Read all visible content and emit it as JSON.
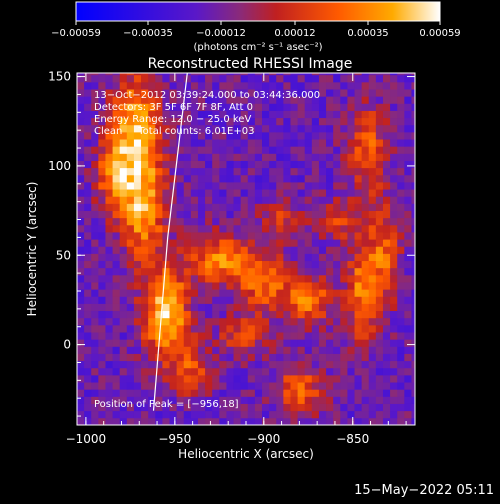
{
  "chart_data": {
    "type": "heatmap",
    "title": "Reconstructed RHESSI Image",
    "xlabel": "Heliocentric X (arcsec)",
    "ylabel": "Heliocentric Y (arcsec)",
    "xlim": [
      -1005,
      -815
    ],
    "ylim": [
      -45,
      152
    ],
    "x_ticks": [
      -1000,
      -950,
      -900,
      -850
    ],
    "x_tick_labels": [
      "−1000",
      "−950",
      "−900",
      "−850"
    ],
    "y_ticks": [
      0,
      50,
      100,
      150
    ],
    "y_tick_labels": [
      "0",
      "50",
      "100",
      "150"
    ],
    "colorbar": {
      "range": [
        -0.00059,
        0.00059
      ],
      "tick_labels": [
        "−0.00059",
        "−0.00035",
        "−0.00012",
        "0.00012",
        "0.00035",
        "0.00059"
      ],
      "units_label": "(photons cm⁻² s⁻¹ asec⁻²)",
      "colors": [
        "#0000ff",
        "#5a18c8",
        "#8a2a7a",
        "#c02020",
        "#ff5a00",
        "#ffaa00",
        "#ffffff"
      ]
    },
    "annotations": {
      "time_range": "13−Oct−2012 03:39:24.000 to 03:44:36.000",
      "detectors": "Detectors: 3F 5F 6F 7F 8F, Att 0",
      "energy_range": "Energy Range: 12.0 − 25.0 keV",
      "clean_counts": "Clean     Total counts: 6.01E+03",
      "peak": "Position of Peak = [−956,18]"
    },
    "peak_position": [
      -956,
      18
    ],
    "limb_line": [
      [
        -962,
        -37
      ],
      [
        -954,
        60
      ],
      [
        -943,
        152
      ]
    ],
    "source_blobs": [
      {
        "x": -955,
        "y": 18,
        "sx": 9,
        "sy": 18,
        "amp": 1.0
      },
      {
        "x": -972,
        "y": 120,
        "sx": 10,
        "sy": 22,
        "amp": 0.9
      },
      {
        "x": -968,
        "y": 75,
        "sx": 9,
        "sy": 20,
        "amp": 0.75
      },
      {
        "x": -985,
        "y": 95,
        "sx": 7,
        "sy": 14,
        "amp": 0.55
      },
      {
        "x": -925,
        "y": 48,
        "sx": 12,
        "sy": 10,
        "amp": 0.7
      },
      {
        "x": -900,
        "y": 35,
        "sx": 10,
        "sy": 12,
        "amp": 0.6
      },
      {
        "x": -875,
        "y": 25,
        "sx": 10,
        "sy": 10,
        "amp": 0.65
      },
      {
        "x": -845,
        "y": 30,
        "sx": 6,
        "sy": 22,
        "amp": 0.65
      },
      {
        "x": -832,
        "y": 50,
        "sx": 6,
        "sy": 20,
        "amp": 0.6
      },
      {
        "x": -842,
        "y": 110,
        "sx": 8,
        "sy": 18,
        "amp": 0.55
      },
      {
        "x": -880,
        "y": -25,
        "sx": 10,
        "sy": 10,
        "amp": 0.55
      },
      {
        "x": -912,
        "y": 5,
        "sx": 10,
        "sy": 8,
        "amp": 0.45
      },
      {
        "x": -940,
        "y": -15,
        "sx": 8,
        "sy": 10,
        "amp": 0.5
      },
      {
        "x": -890,
        "y": 70,
        "sx": 10,
        "sy": 8,
        "amp": 0.4
      },
      {
        "x": -860,
        "y": 70,
        "sx": 8,
        "sy": 8,
        "amp": 0.45
      }
    ]
  },
  "footer": {
    "date": "15−May−2022 05:11"
  }
}
